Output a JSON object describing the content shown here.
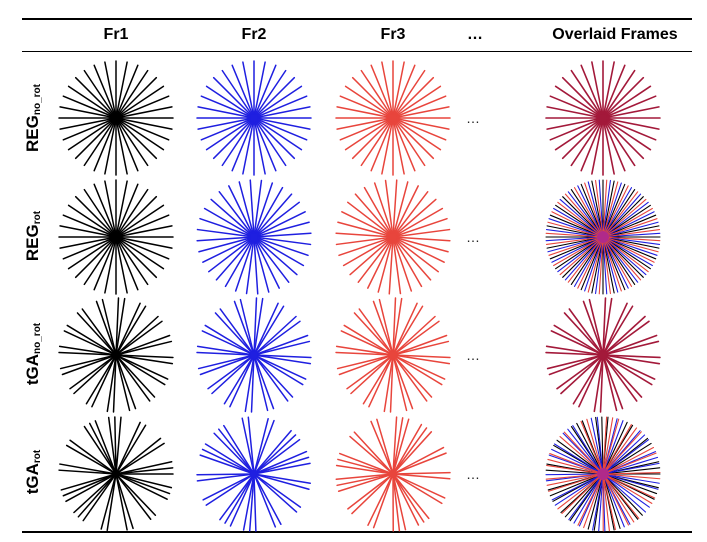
{
  "header": {
    "columns": [
      "Fr1",
      "Fr2",
      "Fr3",
      "…",
      "Overlaid Frames"
    ]
  },
  "rows": [
    {
      "main": "REG",
      "sub": "no_rot"
    },
    {
      "main": "REG",
      "sub": "rot"
    },
    {
      "main": "tGA",
      "sub": "no_rot"
    },
    {
      "main": "tGA",
      "sub": "rot"
    }
  ],
  "ellipsis": "…",
  "colors": {
    "fr1": "#000000",
    "fr2": "#1f1fe0",
    "fr3": "#e8453c",
    "overlay": "#a3193a"
  }
}
